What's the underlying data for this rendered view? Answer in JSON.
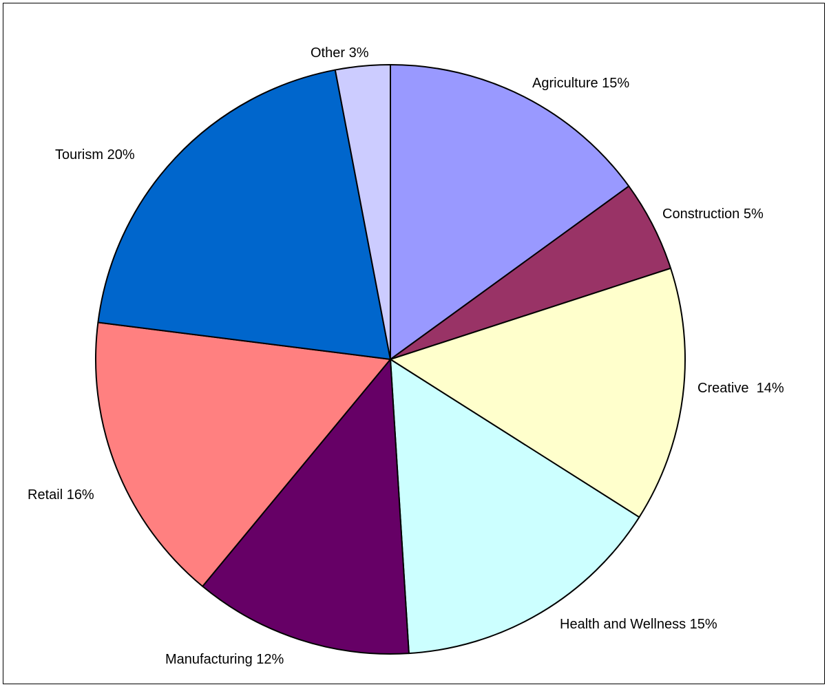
{
  "chart_data": {
    "type": "pie",
    "slices": [
      {
        "label": "Agriculture 15%",
        "value": 15,
        "color": "#9999ff"
      },
      {
        "label": "Construction 5%",
        "value": 5,
        "color": "#993366"
      },
      {
        "label": "Creative  14%",
        "value": 14,
        "color": "#ffffcc"
      },
      {
        "label": "Health and Wellness 15%",
        "value": 15,
        "color": "#ccffff"
      },
      {
        "label": "Manufacturing 12%",
        "value": 12,
        "color": "#660066"
      },
      {
        "label": "Retail 16%",
        "value": 16,
        "color": "#ff8080"
      },
      {
        "label": "Tourism 20%",
        "value": 20,
        "color": "#0066cc"
      },
      {
        "label": "Other 3%",
        "value": 3,
        "color": "#ccccff"
      }
    ],
    "start_angle_deg": 0,
    "direction": "clockwise"
  }
}
